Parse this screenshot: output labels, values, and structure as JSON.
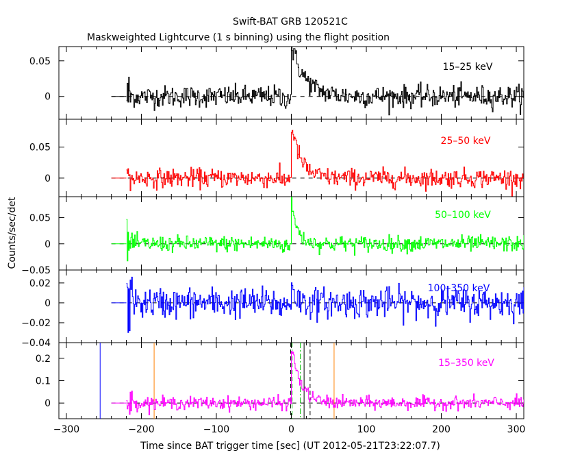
{
  "title": "Swift-BAT GRB 120521C",
  "subtitle": "Maskweighted Lightcurve (1 s binning) using the flight position",
  "xlabel": "Time since BAT trigger time [sec] (UT 2012-05-21T23:22:07.7)",
  "ylabel": "Counts/sec/det",
  "chart_data": {
    "type": "line",
    "title": "Swift-BAT GRB 120521C",
    "subtitle": "Maskweighted Lightcurve (1 s binning) using the flight position",
    "xlabel": "Time since BAT trigger time [sec] (UT 2012-05-21T23:22:07.7)",
    "ylabel": "Counts/sec/det",
    "xlim": [
      -310,
      310
    ],
    "x_ticks": [
      -300,
      -200,
      -100,
      0,
      100,
      200,
      300
    ],
    "x_tick_labels": [
      "−300",
      "−200",
      "−100",
      "0",
      "100",
      "200",
      "300"
    ],
    "data_start": -220,
    "data_end": 310,
    "baseline_start": -240,
    "grid": false,
    "panels": [
      {
        "name": "15–25 keV",
        "color": "#000000",
        "ylim": [
          -0.032,
          0.07
        ],
        "y_ticks": [
          0,
          0.05
        ],
        "y_tick_labels": [
          "0",
          "0.05"
        ],
        "noise_sigma": 0.0075,
        "peak_value": 0.07,
        "decay_seconds": 18,
        "peak_time": 0
      },
      {
        "name": "25–50 keV",
        "color": "#ff0000",
        "ylim": [
          -0.03,
          0.095
        ],
        "y_ticks": [
          0,
          0.05
        ],
        "y_tick_labels": [
          "0",
          "0.05"
        ],
        "noise_sigma": 0.0075,
        "peak_value": 0.085,
        "decay_seconds": 12,
        "peak_time": 0
      },
      {
        "name": "50–100 keV",
        "color": "#00ff00",
        "ylim": [
          -0.05,
          0.09
        ],
        "y_ticks": [
          -0.05,
          0,
          0.05
        ],
        "y_tick_labels": [
          "−0.05",
          "0",
          "0.05"
        ],
        "noise_sigma": 0.0075,
        "peak_value": 0.075,
        "decay_seconds": 8,
        "peak_time": 0
      },
      {
        "name": "100–350 keV",
        "color": "#0000ff",
        "ylim": [
          -0.04,
          0.033
        ],
        "y_ticks": [
          -0.04,
          -0.02,
          0,
          0.02
        ],
        "y_tick_labels": [
          "−0.04",
          "−0.02",
          "0",
          "0.02"
        ],
        "noise_sigma": 0.0075,
        "peak_value": 0.025,
        "decay_seconds": 4,
        "peak_time": 0
      },
      {
        "name": "15–350 keV",
        "color": "#ff00ff",
        "ylim": [
          -0.07,
          0.27
        ],
        "y_ticks": [
          0,
          0.1,
          0.2
        ],
        "y_tick_labels": [
          "0",
          "0.1",
          "0.2"
        ],
        "noise_sigma": 0.014,
        "peak_value": 0.25,
        "decay_seconds": 12,
        "peak_time": 0,
        "markers": [
          {
            "x": -255,
            "color": "#0000ff",
            "style": "solid"
          },
          {
            "x": -183,
            "color": "#ff8000",
            "style": "solid"
          },
          {
            "x": -1,
            "color": "#000000",
            "style": "dashed"
          },
          {
            "x": 1,
            "color": "#00c000",
            "style": "dashed"
          },
          {
            "x": 12,
            "color": "#00c000",
            "style": "dashdot"
          },
          {
            "x": 17,
            "color": "#000000",
            "style": "solid"
          },
          {
            "x": 25,
            "color": "#000000",
            "style": "dashed"
          },
          {
            "x": 57,
            "color": "#ff8000",
            "style": "solid"
          }
        ]
      }
    ]
  }
}
